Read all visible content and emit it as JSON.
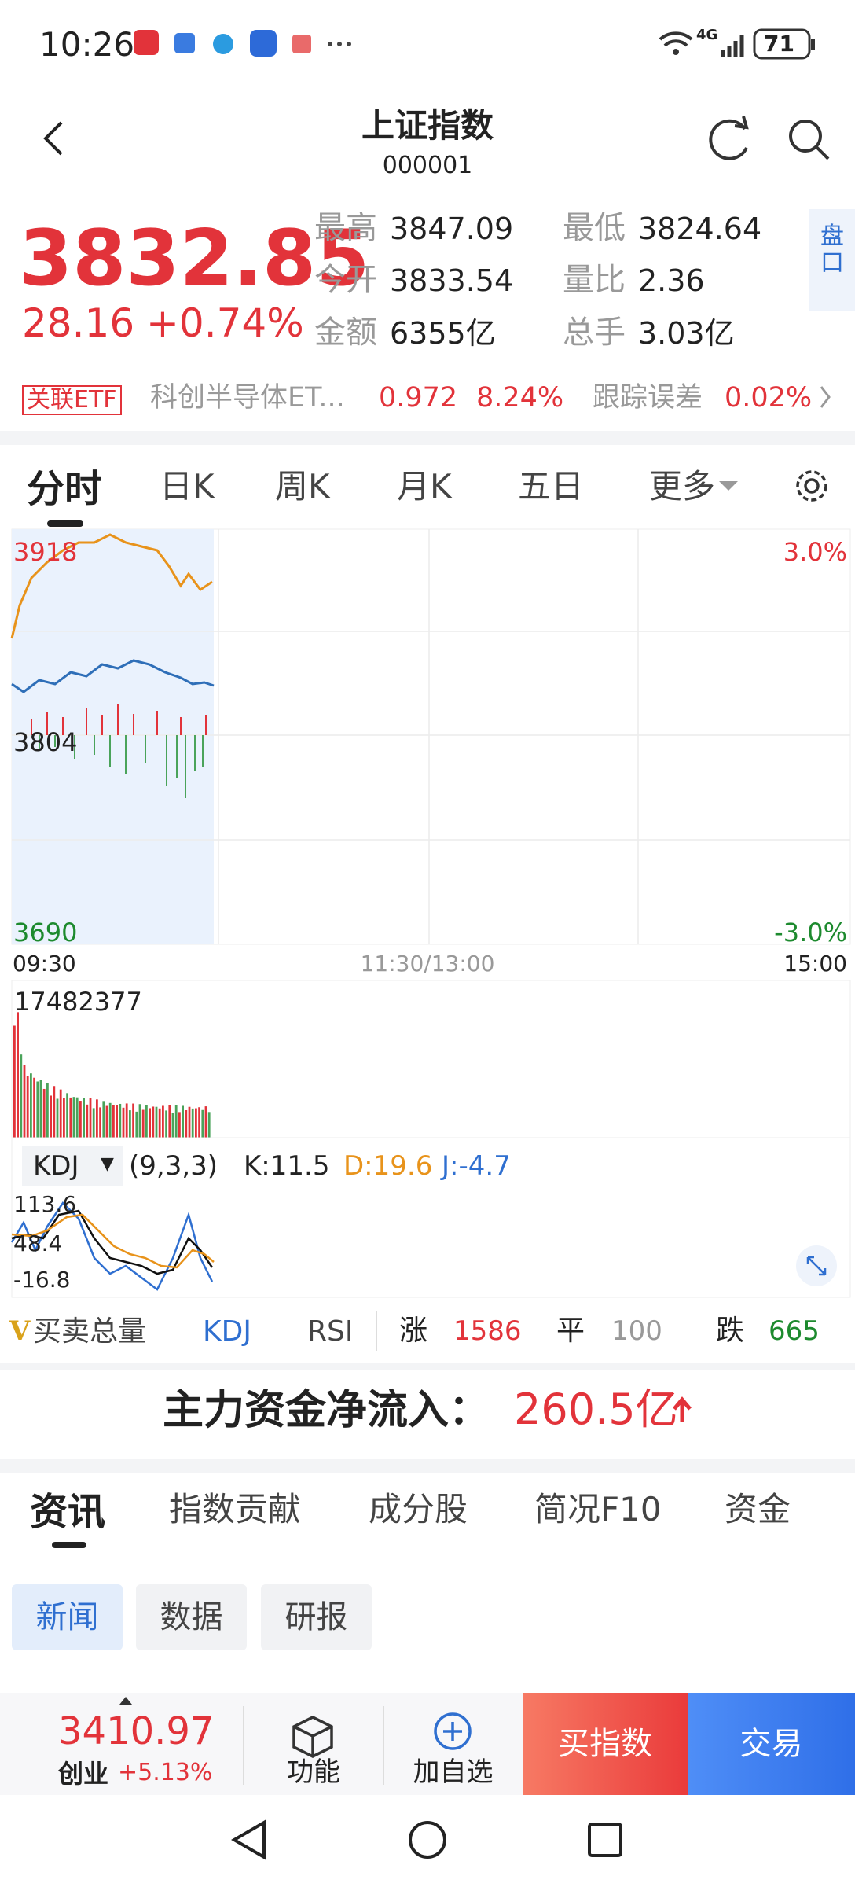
{
  "status_bar": {
    "time": "10:26",
    "network": "4G",
    "battery": "71"
  },
  "header": {
    "title": "上证指数",
    "code": "000001"
  },
  "quote": {
    "price": "3832.85",
    "change": "28.16",
    "change_pct": "+0.74%",
    "stats": [
      {
        "label": "最高",
        "value": "3847.09"
      },
      {
        "label": "最低",
        "value": "3824.64"
      },
      {
        "label": "今开",
        "value": "3833.54"
      },
      {
        "label": "量比",
        "value": "2.36"
      },
      {
        "label": "金额",
        "value": "6355亿"
      },
      {
        "label": "总手",
        "value": "3.03亿"
      }
    ],
    "panel_button": "盘口"
  },
  "etf": {
    "tag": "关联ETF",
    "name": "科创半导体ET...",
    "price": "0.972",
    "change_pct": "8.24%",
    "tracking_label": "跟踪误差",
    "tracking_value": "0.02%"
  },
  "chart_tabs": [
    "分时",
    "日K",
    "周K",
    "月K",
    "五日",
    "更多"
  ],
  "intraday": {
    "price_labels": [
      "3918",
      "3804",
      "3690"
    ],
    "pct_labels": [
      "3.0%",
      "-3.0%"
    ],
    "time_labels": [
      "09:30",
      "11:30/13:00",
      "15:00"
    ],
    "volume_max": "17482377"
  },
  "kdj": {
    "name": "KDJ",
    "params": "(9,3,3)",
    "k": "K:11.5",
    "d": "D:19.6",
    "j": "J:-4.7",
    "axis_labels": [
      "113.6",
      "48.4",
      "-16.8"
    ]
  },
  "indicator_logo": "V",
  "indicator_tabs": [
    "买卖总量",
    "KDJ",
    "RSI"
  ],
  "breadth": {
    "up_label": "涨",
    "up": "1586",
    "flat_label": "平",
    "flat": "100",
    "down_label": "跌",
    "down": "665"
  },
  "fund_flow": {
    "label": "主力资金净流入：",
    "value": "260.5亿"
  },
  "info_tabs": [
    "资讯",
    "指数贡献",
    "成分股",
    "简况F10",
    "资金"
  ],
  "chips": [
    "新闻",
    "数据",
    "研报"
  ],
  "bottom_bar": {
    "index_price": "3410.97",
    "index_name": "创业",
    "index_change": "+5.13%",
    "actions": [
      "功能",
      "加自选"
    ],
    "buy": "买指数",
    "trade": "交易"
  }
}
